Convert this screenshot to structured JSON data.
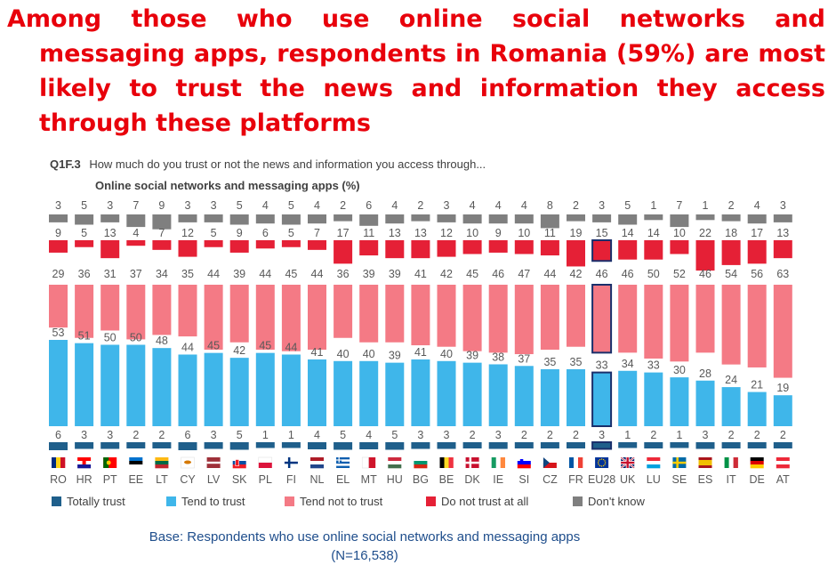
{
  "headline": "Among those who use online social networks and messaging apps, respondents in Romania (59%) are most likely to trust the news and information they access through these platforms",
  "question": {
    "code": "Q1F.3",
    "text": "How much do you trust or not the news and information you access through...",
    "subtitle": "Online social networks and messaging apps (%)"
  },
  "legend": [
    {
      "label": "Totally trust",
      "color": "#1f5f8b"
    },
    {
      "label": "Tend to trust",
      "color": "#3fb6ea"
    },
    {
      "label": "Tend not to trust",
      "color": "#f47a85"
    },
    {
      "label": "Do not trust at all",
      "color": "#e52036"
    },
    {
      "label": "Don't know",
      "color": "#7f7f7f"
    }
  ],
  "base_line1": "Base: Respondents who use online social networks and messaging apps",
  "base_line2": "(N=16,538)",
  "chart_data": {
    "type": "bar",
    "stacked": true,
    "highlight": "EU28",
    "categories": [
      "RO",
      "HR",
      "PT",
      "EE",
      "LT",
      "CY",
      "LV",
      "SK",
      "PL",
      "FI",
      "NL",
      "EL",
      "MT",
      "HU",
      "BG",
      "BE",
      "DK",
      "IE",
      "SI",
      "CZ",
      "FR",
      "EU28",
      "UK",
      "LU",
      "SE",
      "ES",
      "IT",
      "DE",
      "AT"
    ],
    "flag_icons": [
      "flag-ro",
      "flag-hr",
      "flag-pt",
      "flag-ee",
      "flag-lt",
      "flag-cy",
      "flag-lv",
      "flag-sk",
      "flag-pl",
      "flag-fi",
      "flag-nl",
      "flag-el",
      "flag-mt",
      "flag-hu",
      "flag-bg",
      "flag-be",
      "flag-dk",
      "flag-ie",
      "flag-si",
      "flag-cz",
      "flag-fr",
      "flag-eu",
      "flag-uk",
      "flag-lu",
      "flag-se",
      "flag-es",
      "flag-it",
      "flag-de",
      "flag-at"
    ],
    "series": [
      {
        "name": "Totally trust",
        "color": "#1f5f8b",
        "values": [
          6,
          3,
          3,
          2,
          2,
          6,
          3,
          5,
          1,
          1,
          4,
          5,
          4,
          5,
          3,
          3,
          2,
          3,
          2,
          2,
          2,
          3,
          1,
          2,
          1,
          3,
          2,
          2,
          2
        ]
      },
      {
        "name": "Tend to trust",
        "color": "#3fb6ea",
        "values": [
          53,
          51,
          50,
          50,
          48,
          44,
          45,
          42,
          45,
          44,
          41,
          40,
          40,
          39,
          41,
          40,
          39,
          38,
          37,
          35,
          35,
          33,
          34,
          33,
          30,
          28,
          24,
          21,
          19
        ]
      },
      {
        "name": "Tend not to trust",
        "color": "#f47a85",
        "values": [
          29,
          36,
          31,
          37,
          34,
          35,
          44,
          39,
          44,
          45,
          44,
          36,
          39,
          39,
          41,
          42,
          45,
          46,
          47,
          44,
          42,
          46,
          46,
          50,
          52,
          46,
          54,
          56,
          63
        ]
      },
      {
        "name": "Do not trust at all",
        "color": "#e52036",
        "values": [
          9,
          5,
          13,
          4,
          7,
          12,
          5,
          9,
          6,
          5,
          7,
          17,
          11,
          13,
          13,
          12,
          10,
          9,
          10,
          11,
          19,
          15,
          14,
          14,
          10,
          22,
          18,
          17,
          13
        ]
      },
      {
        "name": "Don't know",
        "color": "#7f7f7f",
        "values": [
          3,
          5,
          3,
          7,
          9,
          3,
          3,
          5,
          4,
          5,
          4,
          2,
          6,
          4,
          2,
          3,
          4,
          4,
          4,
          8,
          2,
          3,
          5,
          1,
          7,
          1,
          2,
          4,
          3
        ]
      }
    ]
  }
}
